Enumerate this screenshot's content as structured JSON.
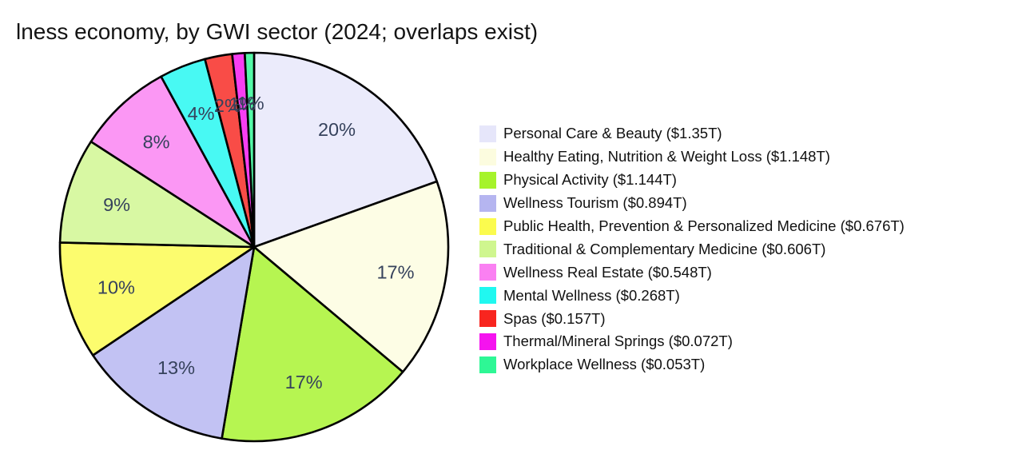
{
  "title": "lness economy, by GWI sector (2024; overlaps exist)",
  "styles": {
    "background": "#FFFFFF",
    "title_color": "#141414",
    "legend_text_color": "#111111",
    "percent_label_color": "#36425C",
    "slice_border_color": "#000000",
    "pie_fill_opacity": 0.82
  },
  "chart_data": {
    "type": "pie",
    "title": "lness economy, by GWI sector (2024; overlaps exist)",
    "unit": "USD trillions",
    "start_angle_deg": 90,
    "direction": "clockwise",
    "legend_position": "right",
    "pct_label_distance": 0.74,
    "sectors": [
      {
        "label": "Personal Care & Beauty",
        "value_trillions": 1.35,
        "display": "Personal Care & Beauty ($1.35T)",
        "pct_label": "20%",
        "color": "#E6E6FA"
      },
      {
        "label": "Healthy Eating, Nutrition & Weight Loss",
        "value_trillions": 1.148,
        "display": "Healthy Eating, Nutrition & Weight Loss ($1.148T)",
        "pct_label": "17%",
        "color": "#FCFCDF"
      },
      {
        "label": "Physical Activity",
        "value_trillions": 1.144,
        "display": "Physical Activity ($1.144T)",
        "pct_label": "17%",
        "color": "#A6F32B"
      },
      {
        "label": "Wellness Tourism",
        "value_trillions": 0.894,
        "display": "Wellness Tourism ($0.894T)",
        "pct_label": "13%",
        "color": "#B5B5F0"
      },
      {
        "label": "Public Health, Prevention & Personalized Medicine",
        "value_trillions": 0.676,
        "display": "Public Health, Prevention & Personalized Medicine ($0.676T)",
        "pct_label": "10%",
        "color": "#FBFB4E"
      },
      {
        "label": "Traditional & Complementary Medicine",
        "value_trillions": 0.606,
        "display": "Traditional & Complementary Medicine ($0.606T)",
        "pct_label": "9%",
        "color": "#CFF68F"
      },
      {
        "label": "Wellness Real Estate",
        "value_trillions": 0.548,
        "display": "Wellness Real Estate ($0.548T)",
        "pct_label": "8%",
        "color": "#FA80F2"
      },
      {
        "label": "Mental Wellness",
        "value_trillions": 0.268,
        "display": "Mental Wellness ($0.268T)",
        "pct_label": "4%",
        "color": "#20F8F0"
      },
      {
        "label": "Spas",
        "value_trillions": 0.157,
        "display": "Spas ($0.157T)",
        "pct_label": "2%",
        "color": "#F8251F"
      },
      {
        "label": "Thermal/Mineral Springs",
        "value_trillions": 0.072,
        "display": "Thermal/Mineral Springs ($0.072T)",
        "pct_label": "1%",
        "color": "#F513EF"
      },
      {
        "label": "Workplace Wellness",
        "value_trillions": 0.053,
        "display": "Workplace Wellness ($0.053T)",
        "pct_label": "1%",
        "color": "#2EF795"
      }
    ]
  }
}
